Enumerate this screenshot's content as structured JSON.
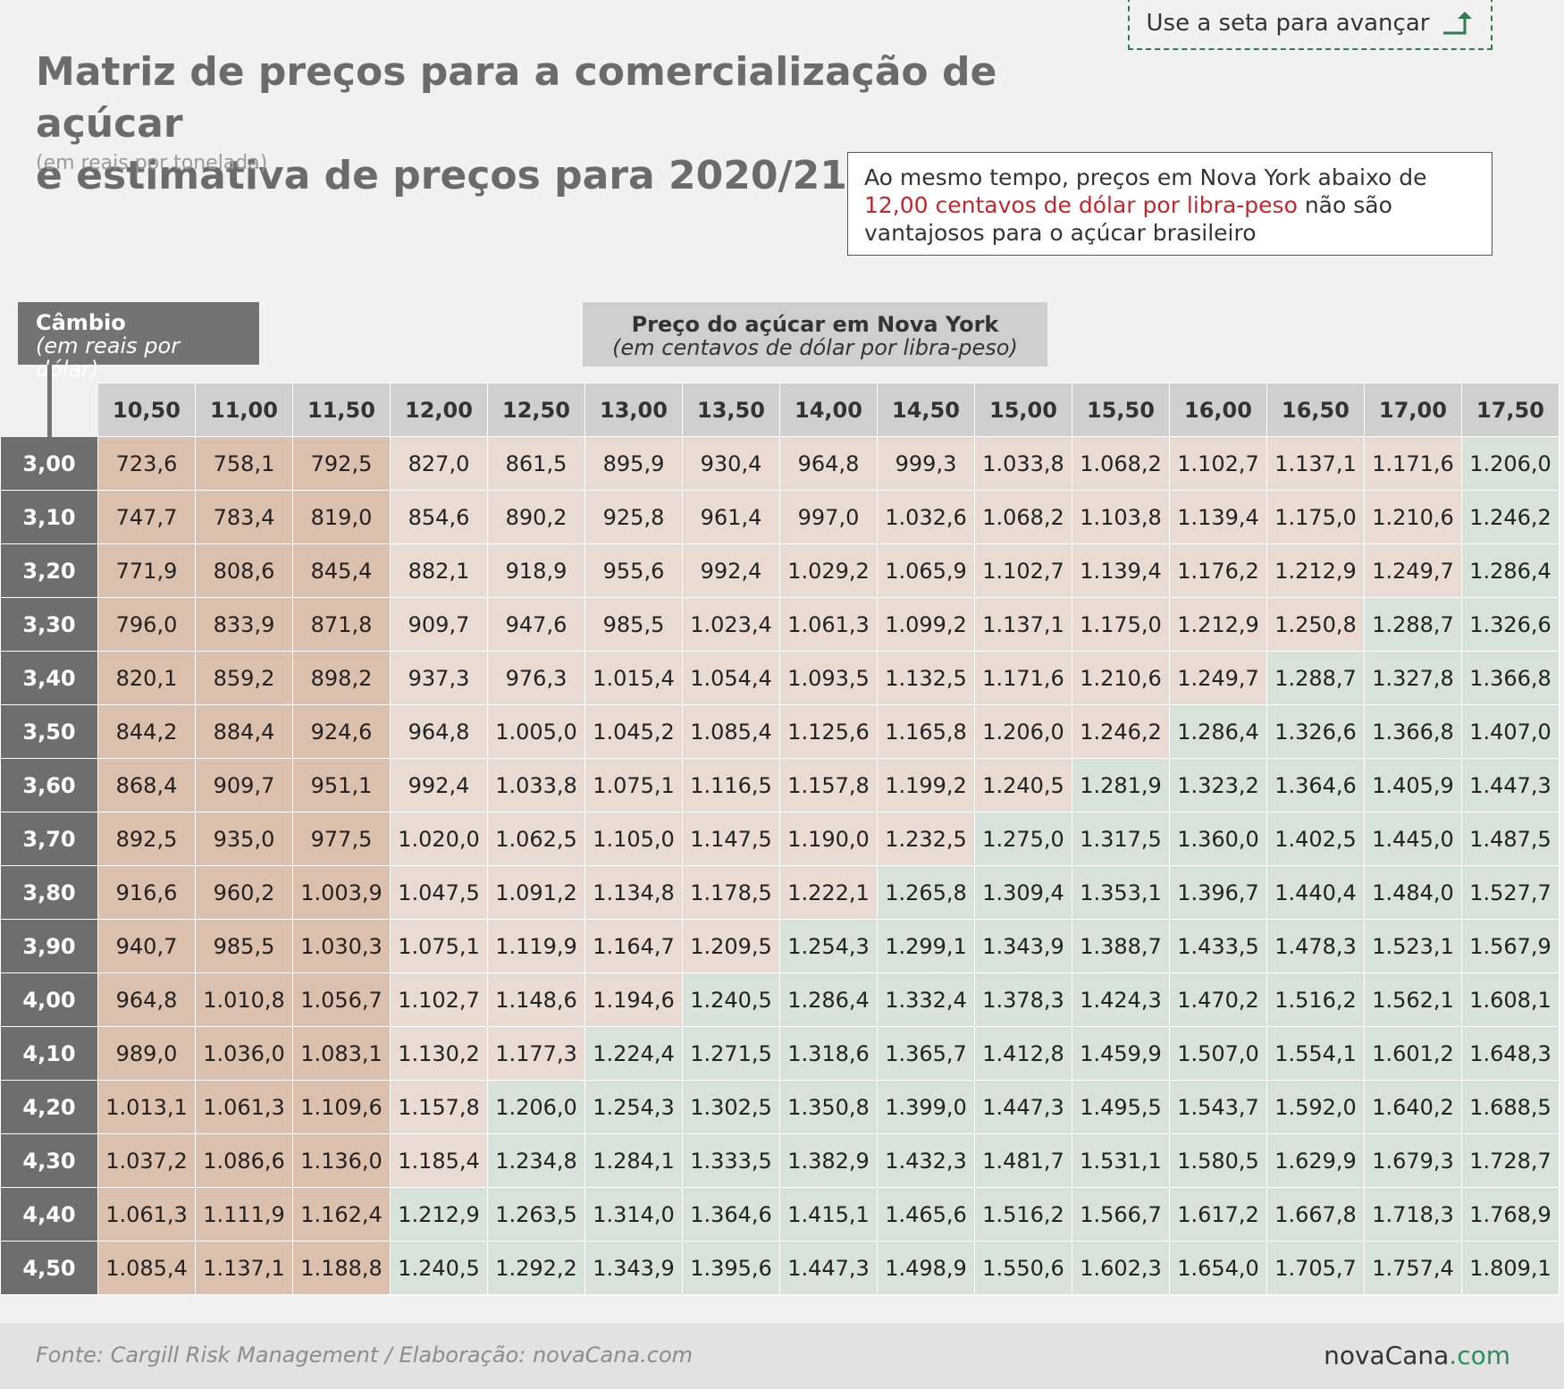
{
  "navigation": {
    "advance_label": "Use a seta para avançar"
  },
  "chart_data": {
    "type": "table",
    "title_line1": "Matriz de preços para a comercialização de açúcar",
    "title_line2": "e estimativa de preços para 2020/21",
    "subtitle": "(em reais por tonelada)",
    "note_part1": "Ao mesmo tempo, preços em Nova York abaixo de ",
    "note_highlight": "12,00 centavos de dólar por libra-peso",
    "note_part2": " não são vantajosos para o açúcar brasileiro",
    "row_axis_label": "Câmbio",
    "row_axis_sublabel": "(em reais por dólar)",
    "col_axis_label": "Preço do açúcar em Nova York",
    "col_axis_sublabel": "(em centavos de dólar por libra-peso)",
    "columns": [
      "10,50",
      "11,00",
      "11,50",
      "12,00",
      "12,50",
      "13,00",
      "13,50",
      "14,00",
      "14,50",
      "15,00",
      "15,50",
      "16,00",
      "16,50",
      "17,00",
      "17,50"
    ],
    "rows": [
      {
        "label": "3,00",
        "values": [
          "723,6",
          "758,1",
          "792,5",
          "827,0",
          "861,5",
          "895,9",
          "930,4",
          "964,8",
          "999,3",
          "1.033,8",
          "1.068,2",
          "1.102,7",
          "1.137,1",
          "1.171,6",
          "1.206,0"
        ]
      },
      {
        "label": "3,10",
        "values": [
          "747,7",
          "783,4",
          "819,0",
          "854,6",
          "890,2",
          "925,8",
          "961,4",
          "997,0",
          "1.032,6",
          "1.068,2",
          "1.103,8",
          "1.139,4",
          "1.175,0",
          "1.210,6",
          "1.246,2"
        ]
      },
      {
        "label": "3,20",
        "values": [
          "771,9",
          "808,6",
          "845,4",
          "882,1",
          "918,9",
          "955,6",
          "992,4",
          "1.029,2",
          "1.065,9",
          "1.102,7",
          "1.139,4",
          "1.176,2",
          "1.212,9",
          "1.249,7",
          "1.286,4"
        ]
      },
      {
        "label": "3,30",
        "values": [
          "796,0",
          "833,9",
          "871,8",
          "909,7",
          "947,6",
          "985,5",
          "1.023,4",
          "1.061,3",
          "1.099,2",
          "1.137,1",
          "1.175,0",
          "1.212,9",
          "1.250,8",
          "1.288,7",
          "1.326,6"
        ]
      },
      {
        "label": "3,40",
        "values": [
          "820,1",
          "859,2",
          "898,2",
          "937,3",
          "976,3",
          "1.015,4",
          "1.054,4",
          "1.093,5",
          "1.132,5",
          "1.171,6",
          "1.210,6",
          "1.249,7",
          "1.288,7",
          "1.327,8",
          "1.366,8"
        ]
      },
      {
        "label": "3,50",
        "values": [
          "844,2",
          "884,4",
          "924,6",
          "964,8",
          "1.005,0",
          "1.045,2",
          "1.085,4",
          "1.125,6",
          "1.165,8",
          "1.206,0",
          "1.246,2",
          "1.286,4",
          "1.326,6",
          "1.366,8",
          "1.407,0"
        ]
      },
      {
        "label": "3,60",
        "values": [
          "868,4",
          "909,7",
          "951,1",
          "992,4",
          "1.033,8",
          "1.075,1",
          "1.116,5",
          "1.157,8",
          "1.199,2",
          "1.240,5",
          "1.281,9",
          "1.323,2",
          "1.364,6",
          "1.405,9",
          "1.447,3"
        ]
      },
      {
        "label": "3,70",
        "values": [
          "892,5",
          "935,0",
          "977,5",
          "1.020,0",
          "1.062,5",
          "1.105,0",
          "1.147,5",
          "1.190,0",
          "1.232,5",
          "1.275,0",
          "1.317,5",
          "1.360,0",
          "1.402,5",
          "1.445,0",
          "1.487,5"
        ]
      },
      {
        "label": "3,80",
        "values": [
          "916,6",
          "960,2",
          "1.003,9",
          "1.047,5",
          "1.091,2",
          "1.134,8",
          "1.178,5",
          "1.222,1",
          "1.265,8",
          "1.309,4",
          "1.353,1",
          "1.396,7",
          "1.440,4",
          "1.484,0",
          "1.527,7"
        ]
      },
      {
        "label": "3,90",
        "values": [
          "940,7",
          "985,5",
          "1.030,3",
          "1.075,1",
          "1.119,9",
          "1.164,7",
          "1.209,5",
          "1.254,3",
          "1.299,1",
          "1.343,9",
          "1.388,7",
          "1.433,5",
          "1.478,3",
          "1.523,1",
          "1.567,9"
        ]
      },
      {
        "label": "4,00",
        "values": [
          "964,8",
          "1.010,8",
          "1.056,7",
          "1.102,7",
          "1.148,6",
          "1.194,6",
          "1.240,5",
          "1.286,4",
          "1.332,4",
          "1.378,3",
          "1.424,3",
          "1.470,2",
          "1.516,2",
          "1.562,1",
          "1.608,1"
        ]
      },
      {
        "label": "4,10",
        "values": [
          "989,0",
          "1.036,0",
          "1.083,1",
          "1.130,2",
          "1.177,3",
          "1.224,4",
          "1.271,5",
          "1.318,6",
          "1.365,7",
          "1.412,8",
          "1.459,9",
          "1.507,0",
          "1.554,1",
          "1.601,2",
          "1.648,3"
        ]
      },
      {
        "label": "4,20",
        "values": [
          "1.013,1",
          "1.061,3",
          "1.109,6",
          "1.157,8",
          "1.206,0",
          "1.254,3",
          "1.302,5",
          "1.350,8",
          "1.399,0",
          "1.447,3",
          "1.495,5",
          "1.543,7",
          "1.592,0",
          "1.640,2",
          "1.688,5"
        ]
      },
      {
        "label": "4,30",
        "values": [
          "1.037,2",
          "1.086,6",
          "1.136,0",
          "1.185,4",
          "1.234,8",
          "1.284,1",
          "1.333,5",
          "1.382,9",
          "1.432,3",
          "1.481,7",
          "1.531,1",
          "1.580,5",
          "1.629,9",
          "1.679,3",
          "1.728,7"
        ]
      },
      {
        "label": "4,40",
        "values": [
          "1.061,3",
          "1.111,9",
          "1.162,4",
          "1.212,9",
          "1.263,5",
          "1.314,0",
          "1.364,6",
          "1.415,1",
          "1.465,6",
          "1.516,2",
          "1.566,7",
          "1.617,2",
          "1.667,8",
          "1.718,3",
          "1.768,9"
        ]
      },
      {
        "label": "4,50",
        "values": [
          "1.085,4",
          "1.137,1",
          "1.188,8",
          "1.240,5",
          "1.292,2",
          "1.343,9",
          "1.395,6",
          "1.447,3",
          "1.498,9",
          "1.550,6",
          "1.602,3",
          "1.654,0",
          "1.705,7",
          "1.757,4",
          "1.809,1"
        ]
      }
    ],
    "green_start_col_by_row": [
      14,
      14,
      14,
      13,
      12,
      11,
      10,
      9,
      8,
      7,
      6,
      5,
      4,
      4,
      3,
      3
    ],
    "colors": {
      "strong": "#dcc0ae",
      "light": "#e9dbd2",
      "green": "#d6e2da"
    }
  },
  "footer": {
    "source": "Fonte: Cargill Risk Management / Elaboração: novaCana.com",
    "logo_main": "novaCana",
    "logo_suffix": ".com"
  }
}
